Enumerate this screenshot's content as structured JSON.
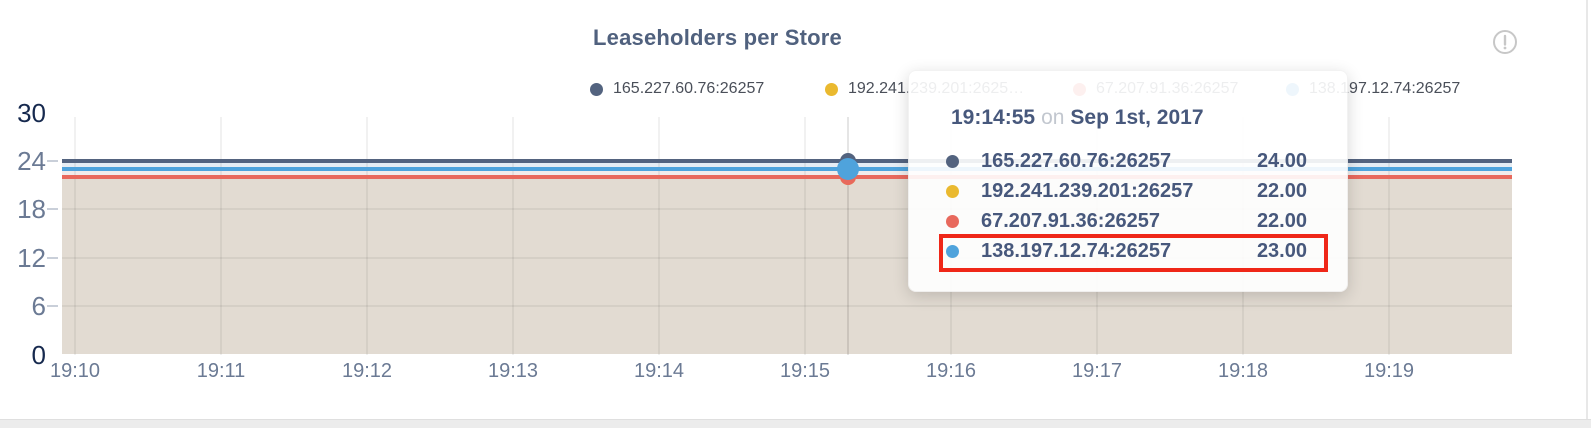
{
  "title": "Leaseholders per Store",
  "colors": {
    "title_text": "#50617e",
    "axis_text_strong": "#16294e",
    "axis_text": "#6b7a94",
    "legend_text": "#4a4f59",
    "tooltip_text": "#47587c",
    "highlight_box": "#ef2718",
    "series_navy": "#53637f",
    "series_yellow": "#eab92f",
    "series_red": "#e8695d",
    "series_blue": "#4fa3dc"
  },
  "legend": {
    "items": [
      {
        "label": "165.227.60.76:26257",
        "color": "#53637f"
      },
      {
        "label": "192.241.239.201:2625…",
        "color": "#eab92f"
      },
      {
        "label": "67.207.91.36:26257",
        "color": "#e8695d"
      },
      {
        "label": "138.197.12.74:26257",
        "color": "#4fa3dc"
      }
    ]
  },
  "tooltip": {
    "time": "19:14:55",
    "conjunction": "on",
    "date": "Sep 1st, 2017",
    "rows": [
      {
        "label": "165.227.60.76:26257",
        "value": "24.00",
        "color": "#53637f",
        "highlighted": false
      },
      {
        "label": "192.241.239.201:26257",
        "value": "22.00",
        "color": "#eab92f",
        "highlighted": false
      },
      {
        "label": "67.207.91.36:26257",
        "value": "22.00",
        "color": "#e8695d",
        "highlighted": false
      },
      {
        "label": "138.197.12.74:26257",
        "value": "23.00",
        "color": "#4fa3dc",
        "highlighted": true
      }
    ]
  },
  "chart_data": {
    "type": "line",
    "title": "Leaseholders per Store",
    "x_ticks": [
      "19:10",
      "19:11",
      "19:12",
      "19:13",
      "19:14",
      "19:15",
      "19:16",
      "19:17",
      "19:18",
      "19:19"
    ],
    "y_ticks": [
      0,
      6,
      12,
      18,
      24,
      30
    ],
    "ylim": [
      0,
      30
    ],
    "xlabel": "",
    "ylabel": "",
    "grid": true,
    "legend_position": "top",
    "series": [
      {
        "name": "165.227.60.76:26257",
        "color": "#53637f",
        "value": 24,
        "shape": "constant"
      },
      {
        "name": "192.241.239.201:26257",
        "color": "#eab92f",
        "value": 22,
        "shape": "constant"
      },
      {
        "name": "67.207.91.36:26257",
        "color": "#e8695d",
        "value": 22,
        "shape": "constant"
      },
      {
        "name": "138.197.12.74:26257",
        "color": "#4fa3dc",
        "value": 23,
        "shape": "constant"
      }
    ],
    "hover": {
      "time": "19:14:55",
      "date": "Sep 1st, 2017",
      "highlighted_series": "138.197.12.74:26257"
    },
    "area_bands": [
      "#e6edf4",
      "#f1ecec",
      "#e2dbd2"
    ]
  }
}
